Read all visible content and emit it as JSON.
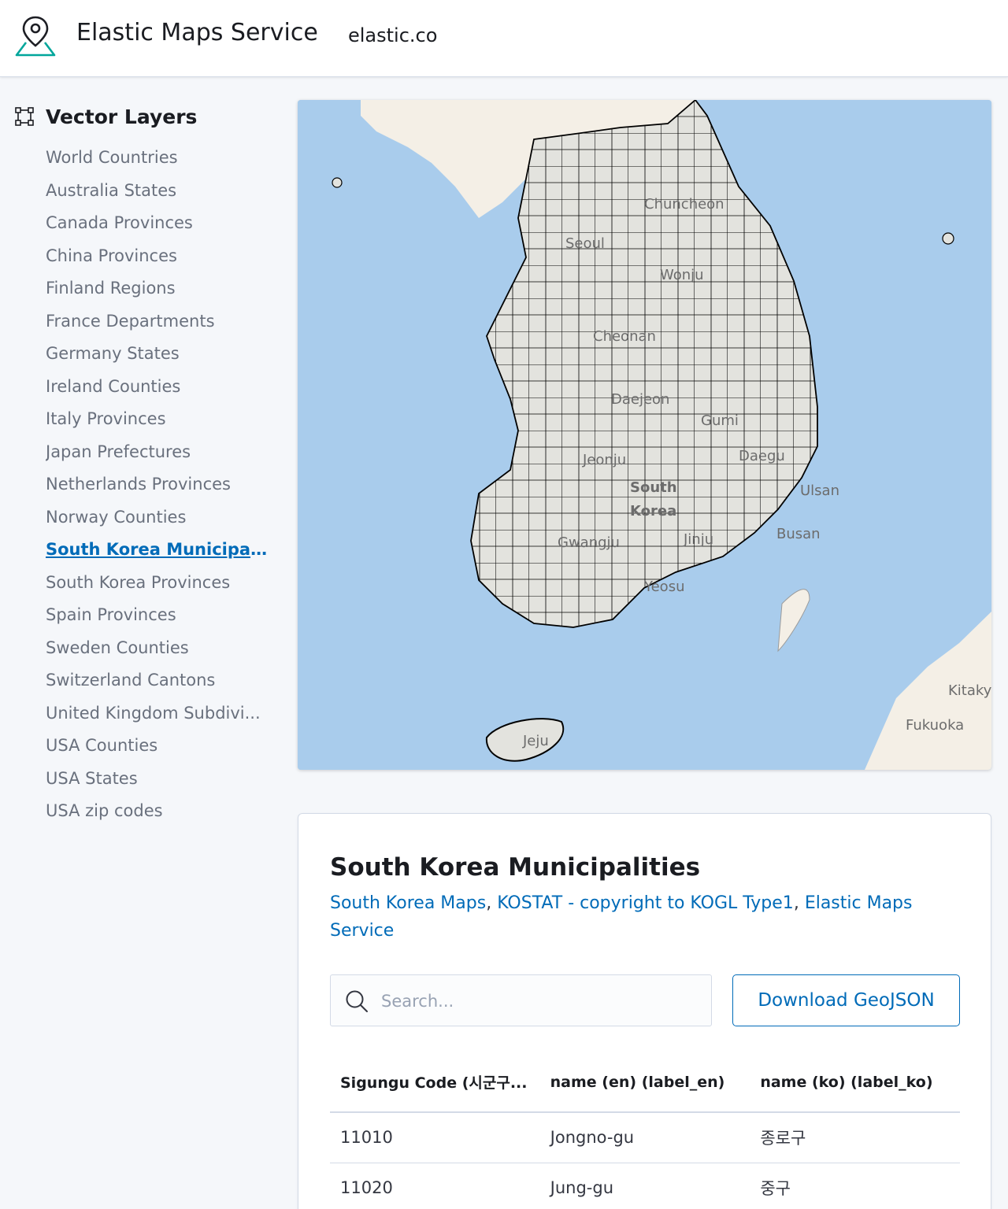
{
  "header": {
    "app_title": "Elastic Maps Service",
    "link_label": "elastic.co"
  },
  "sidebar": {
    "title": "Vector Layers",
    "items": [
      {
        "label": "World Countries",
        "active": false
      },
      {
        "label": "Australia States",
        "active": false
      },
      {
        "label": "Canada Provinces",
        "active": false
      },
      {
        "label": "China Provinces",
        "active": false
      },
      {
        "label": "Finland Regions",
        "active": false
      },
      {
        "label": "France Departments",
        "active": false
      },
      {
        "label": "Germany States",
        "active": false
      },
      {
        "label": "Ireland Counties",
        "active": false
      },
      {
        "label": "Italy Provinces",
        "active": false
      },
      {
        "label": "Japan Prefectures",
        "active": false
      },
      {
        "label": "Netherlands Provinces",
        "active": false
      },
      {
        "label": "Norway Counties",
        "active": false
      },
      {
        "label": "South Korea Municipali...",
        "active": true
      },
      {
        "label": "South Korea Provinces",
        "active": false
      },
      {
        "label": "Spain Provinces",
        "active": false
      },
      {
        "label": "Sweden Counties",
        "active": false
      },
      {
        "label": "Switzerland Cantons",
        "active": false
      },
      {
        "label": "United Kingdom Subdivi...",
        "active": false
      },
      {
        "label": "USA Counties",
        "active": false
      },
      {
        "label": "USA States",
        "active": false
      },
      {
        "label": "USA zip codes",
        "active": false
      }
    ]
  },
  "map": {
    "labels": {
      "chuncheon": "Chuncheon",
      "seoul": "Seoul",
      "wonju": "Wonju",
      "cheonan": "Cheonan",
      "daejeon": "Daejeon",
      "gumi": "Gumi",
      "daegu": "Daegu",
      "jeonju": "Jeonju",
      "south": "South",
      "korea": "Korea",
      "ulsan": "Ulsan",
      "busan": "Busan",
      "gwangju": "Gwangju",
      "jinju": "Jinju",
      "yeosu": "Yeosu",
      "jeju": "Jeju",
      "kitakyushu": "Kitaky",
      "fukuoka": "Fukuoka"
    },
    "colors": {
      "sea": "#a9ccec",
      "land": "#f4efe6",
      "region_fill": "#e3e3de",
      "region_stroke": "#000000"
    }
  },
  "panel": {
    "title": "South Korea Municipalities",
    "sources": [
      "South Korea Maps",
      "KOSTAT - copyright to KOGL Type1",
      "Elastic Maps Service"
    ],
    "source_sep": ", ",
    "search_placeholder": "Search...",
    "download_label": "Download GeoJSON"
  },
  "table": {
    "columns": [
      "Sigungu Code (시군구...",
      "name (en) (label_en)",
      "name (ko) (label_ko)"
    ],
    "rows": [
      [
        "11010",
        "Jongno-gu",
        "종로구"
      ],
      [
        "11020",
        "Jung-gu",
        "중구"
      ]
    ]
  },
  "icons": {
    "logo": "map-pin-logo-icon",
    "vector": "vector-square-icon",
    "search": "search-icon"
  }
}
